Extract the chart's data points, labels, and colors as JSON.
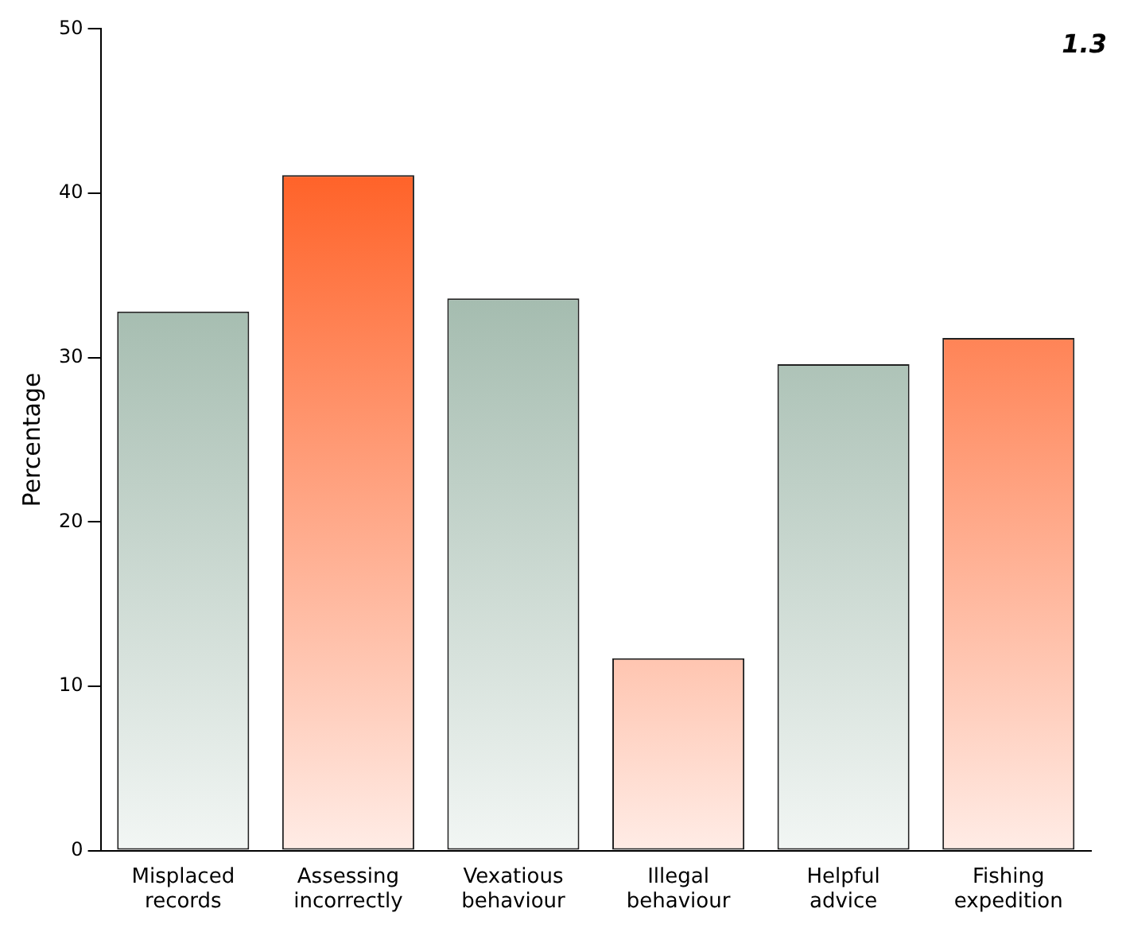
{
  "chart_data": {
    "type": "bar",
    "ylabel": "Percentage",
    "annotations": [
      "1.3"
    ],
    "categories": [
      "Misplaced records",
      "Assessing incorrectly",
      "Vexatious behaviour",
      "Illegal behaviour",
      "Helpful advice",
      "Fishing expedition"
    ],
    "values": [
      32.8,
      41.1,
      33.6,
      11.7,
      29.6,
      31.2
    ],
    "colors": [
      "#7fa08e",
      "#ff4500",
      "#7fa08e",
      "#ff4500",
      "#7fa08e",
      "#ff4500"
    ],
    "ylim": [
      0,
      50
    ],
    "yticks": [
      0,
      10,
      20,
      30,
      40,
      50
    ],
    "grid": false
  }
}
